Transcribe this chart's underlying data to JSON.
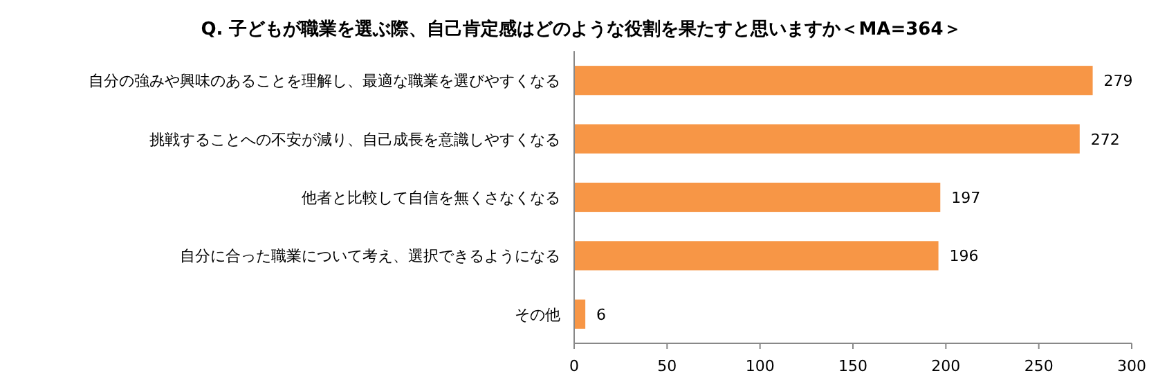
{
  "chart_data": {
    "type": "bar",
    "orientation": "horizontal",
    "title": "Q. 子どもが職業を選ぶ際、自己肯定感はどのような役割を果たすと思いますか＜MA=364＞",
    "categories": [
      "自分の強みや興味のあることを理解し、最適な職業を選びやすくなる",
      "挑戦することへの不安が減り、自己成長を意識しやすくなる",
      "他者と比較して自信を無くさなくなる",
      "自分に合った職業について考え、選択できるようになる",
      "その他"
    ],
    "values": [
      279,
      272,
      197,
      196,
      6
    ],
    "color": "#f79646",
    "xlim": [
      0,
      300
    ],
    "xticks": [
      0,
      50,
      100,
      150,
      200,
      250,
      300
    ],
    "data_labels": true
  }
}
